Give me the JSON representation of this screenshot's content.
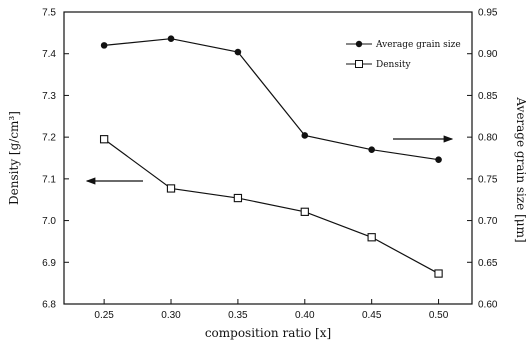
{
  "chart_data": {
    "type": "line",
    "x": [
      0.25,
      0.3,
      0.35,
      0.4,
      0.45,
      0.5
    ],
    "x_tick_labels": [
      "0.25",
      "0.30",
      "0.35",
      "0.40",
      "0.45",
      "0.50"
    ],
    "xlabel": "composition ratio [x]",
    "xlim": [
      0.22,
      0.525
    ],
    "y_left": {
      "label": "Density [g/cm³]",
      "lim": [
        6.8,
        7.5
      ],
      "ticks": [
        "6.8",
        "6.9",
        "7.0",
        "7.1",
        "7.2",
        "7.3",
        "7.4",
        "7.5"
      ]
    },
    "y_right": {
      "label": "Average grain size [μm]",
      "lim": [
        0.6,
        0.95
      ],
      "ticks": [
        "0.60",
        "0.65",
        "0.70",
        "0.75",
        "0.80",
        "0.85",
        "0.90",
        "0.95"
      ]
    },
    "series": [
      {
        "name": "Average grain size",
        "axis": "right",
        "marker": "filled-circle",
        "values": [
          0.91,
          0.918,
          0.902,
          0.802,
          0.785,
          0.773
        ]
      },
      {
        "name": "Density",
        "axis": "left",
        "marker": "open-square",
        "values": [
          7.195,
          7.077,
          7.054,
          7.021,
          6.96,
          6.873
        ]
      }
    ],
    "legend_position": "top-right",
    "annotations": [
      {
        "type": "arrow",
        "direction": "left",
        "meaning": "Density series refers to left axis"
      },
      {
        "type": "arrow",
        "direction": "right",
        "meaning": "Average grain size series refers to right axis"
      }
    ],
    "grid": false
  }
}
